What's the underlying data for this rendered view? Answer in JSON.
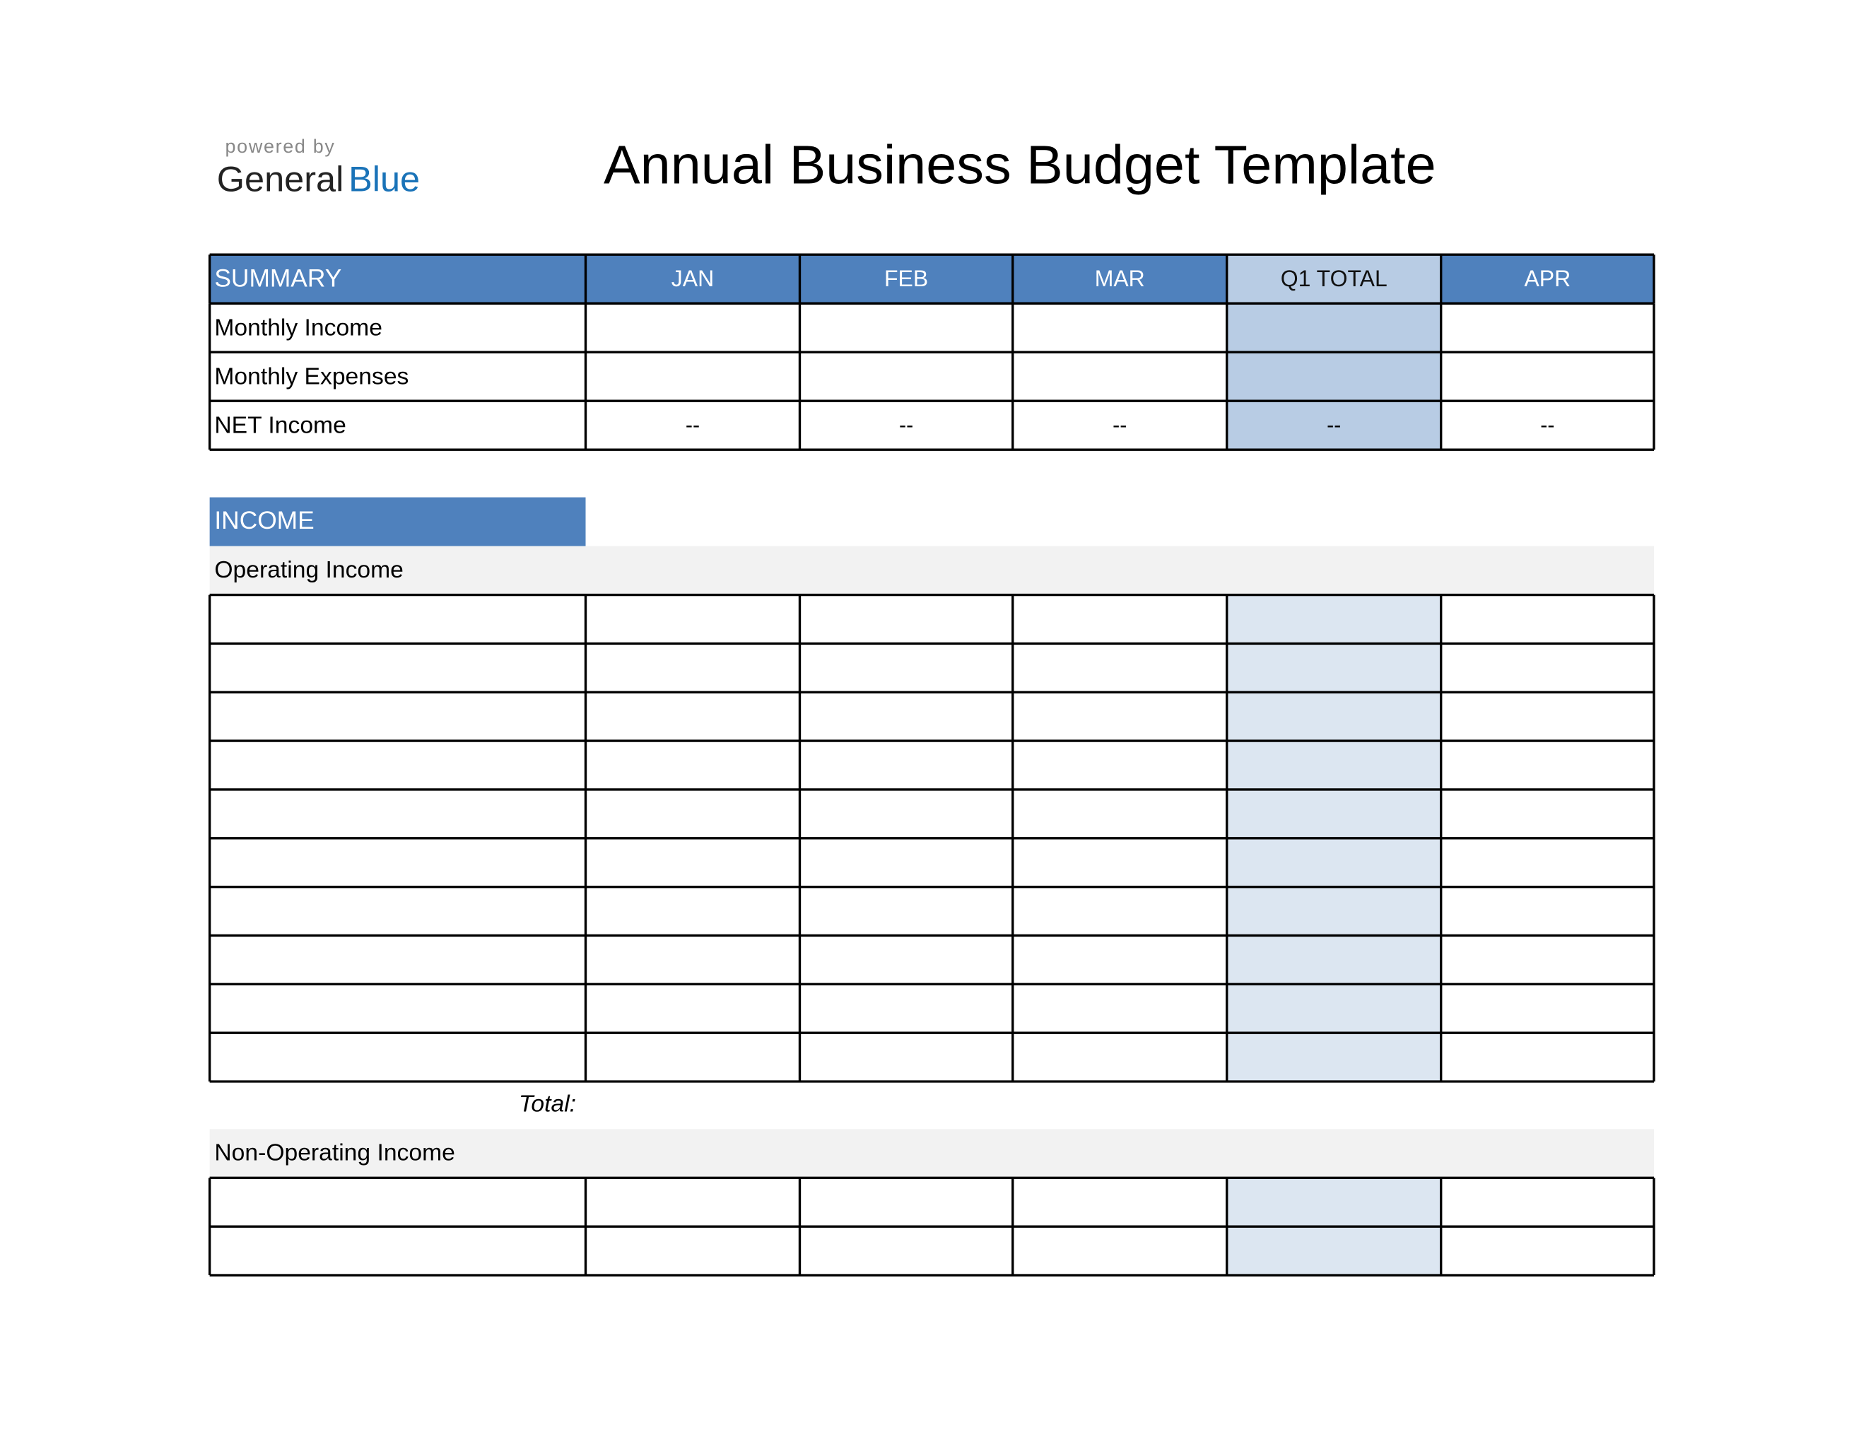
{
  "header": {
    "powered_by": "powered by",
    "brand_dark": "General",
    "brand_blue": "Blue",
    "title": "Annual Business Budget Template"
  },
  "summary": {
    "columns": [
      "SUMMARY",
      "JAN",
      "FEB",
      "MAR",
      "Q1 TOTAL",
      "APR"
    ],
    "rows": [
      {
        "label": "Monthly Income"
      },
      {
        "label": "Monthly Expenses"
      },
      {
        "label": "NET Income",
        "values": [
          "--",
          "--",
          "--",
          "--",
          "--"
        ]
      }
    ]
  },
  "income": {
    "title": "INCOME",
    "sections": [
      {
        "title": "Operating Income",
        "total_label": "Total:"
      },
      {
        "title": "Non-Operating Income"
      }
    ]
  }
}
